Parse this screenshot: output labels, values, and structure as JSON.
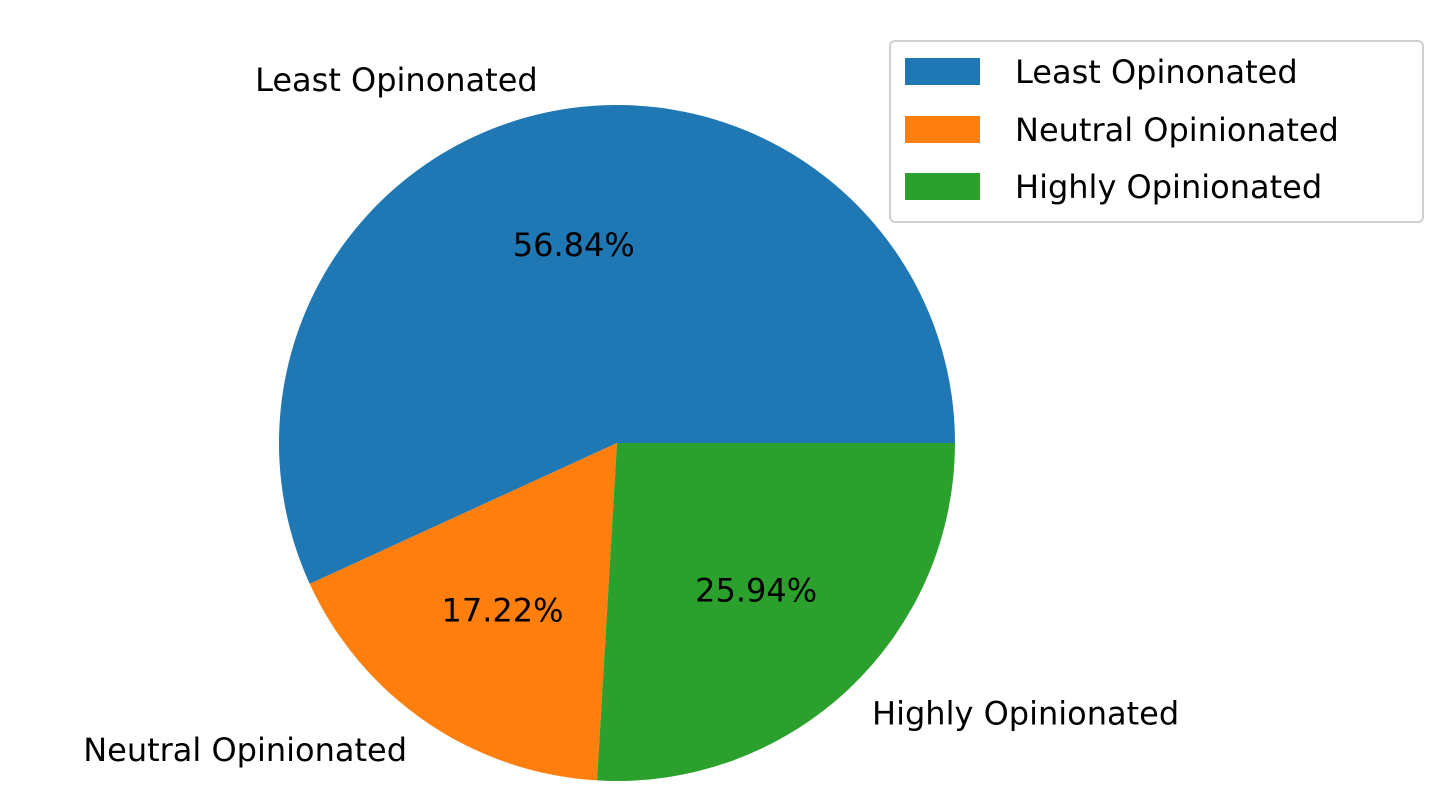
{
  "chart_data": {
    "type": "pie",
    "categories": [
      "Least Opinonated",
      "Neutral Opinionated",
      "Highly Opinionated"
    ],
    "values": [
      56.84,
      17.22,
      25.94
    ],
    "value_labels": [
      "56.84%",
      "17.22%",
      "25.94%"
    ],
    "colors": [
      "#1f77b4",
      "#ff7f0e",
      "#2ca02c"
    ],
    "start_angle_deg": 0,
    "direction": "counterclockwise",
    "legend": {
      "position": "top-right",
      "entries": [
        "Least Opinonated",
        "Neutral Opinionated",
        "Highly Opinionated"
      ]
    }
  }
}
